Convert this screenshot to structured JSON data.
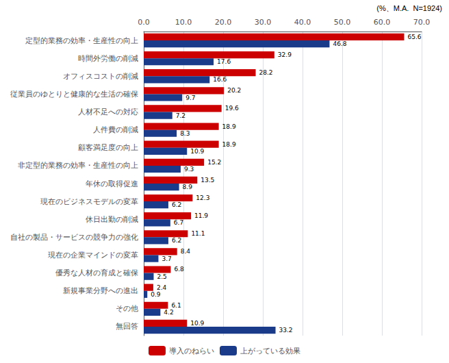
{
  "chart_data": {
    "type": "bar",
    "orientation": "horizontal",
    "categories": [
      "定型的業務の効率・生産性の向上",
      "時間外労働の削減",
      "オフィスコストの削減",
      "従業員のゆとりと健康的な生活の確保",
      "人材不足への対応",
      "人件費の削減",
      "顧客満足度の向上",
      "非定型的業務の効率・生産性の向上",
      "年休の取得促進",
      "現在のビジネスモデルの変革",
      "休日出勤の削減",
      "自社の製品・サービスの競争力の強化",
      "現在の企業マインドの変革",
      "優秀な人材の育成と確保",
      "新規事業分野への進出",
      "その他",
      "無回答"
    ],
    "series": [
      {
        "name": "導入のねらい",
        "color": "#cc0000",
        "values": [
          65.6,
          32.9,
          28.2,
          20.2,
          19.6,
          18.9,
          18.9,
          15.2,
          13.5,
          12.3,
          11.9,
          11.1,
          8.4,
          6.8,
          2.4,
          6.1,
          10.9
        ]
      },
      {
        "name": "上がっている効果",
        "color": "#1a3a8a",
        "values": [
          46.8,
          17.6,
          16.6,
          9.7,
          7.2,
          8.3,
          10.9,
          9.3,
          8.9,
          6.2,
          6.7,
          6.2,
          3.7,
          2.5,
          0.9,
          4.2,
          33.2
        ]
      }
    ],
    "xlim": [
      0,
      70.0
    ],
    "xticks": [
      {
        "value": 0,
        "label": "0.0"
      },
      {
        "value": 10,
        "label": "10.0"
      },
      {
        "value": 20,
        "label": "20.0"
      },
      {
        "value": 30,
        "label": "30.0"
      },
      {
        "value": 40,
        "label": "40.0"
      },
      {
        "value": 50,
        "label": "50.0"
      },
      {
        "value": 60,
        "label": "60.0"
      },
      {
        "value": 70,
        "label": "70.0"
      }
    ],
    "annotations": [
      "(%、M.A.  N=1924)"
    ],
    "grid": true,
    "data_labels": true,
    "legend": "bottom"
  }
}
